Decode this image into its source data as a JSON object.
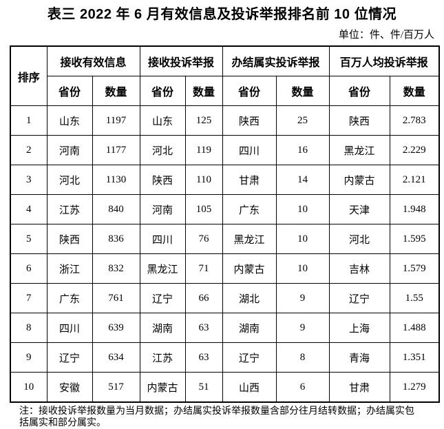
{
  "title": "表三 2022 年 6 月有效信息及投诉举报排名前 10 位情况",
  "unit_label": "单位：件、件/百万人",
  "table": {
    "rank_header": "排序",
    "groups": [
      {
        "label": "接收有效信息",
        "province_header": "省份",
        "count_header": "数量"
      },
      {
        "label": "接收投诉举报",
        "province_header": "省份",
        "count_header": "数量"
      },
      {
        "label": "办结属实投诉举报",
        "province_header": "省份",
        "count_header": "数量"
      },
      {
        "label": "百万人均投诉举报",
        "province_header": "省份",
        "count_header": "数量"
      }
    ],
    "rows": [
      {
        "rank": "1",
        "cells": [
          "山东",
          "1197",
          "山东",
          "125",
          "陕西",
          "25",
          "陕西",
          "2.783"
        ]
      },
      {
        "rank": "2",
        "cells": [
          "河南",
          "1177",
          "河北",
          "119",
          "四川",
          "16",
          "黑龙江",
          "2.229"
        ]
      },
      {
        "rank": "3",
        "cells": [
          "河北",
          "1130",
          "陕西",
          "110",
          "甘肃",
          "14",
          "内蒙古",
          "2.121"
        ]
      },
      {
        "rank": "4",
        "cells": [
          "江苏",
          "840",
          "河南",
          "105",
          "广东",
          "10",
          "天津",
          "1.948"
        ]
      },
      {
        "rank": "5",
        "cells": [
          "陕西",
          "836",
          "四川",
          "76",
          "黑龙江",
          "10",
          "河北",
          "1.595"
        ]
      },
      {
        "rank": "6",
        "cells": [
          "浙江",
          "832",
          "黑龙江",
          "71",
          "内蒙古",
          "10",
          "吉林",
          "1.579"
        ]
      },
      {
        "rank": "7",
        "cells": [
          "广东",
          "761",
          "辽宁",
          "66",
          "湖北",
          "9",
          "辽宁",
          "1.55"
        ]
      },
      {
        "rank": "8",
        "cells": [
          "四川",
          "639",
          "湖南",
          "63",
          "湖南",
          "9",
          "上海",
          "1.488"
        ]
      },
      {
        "rank": "9",
        "cells": [
          "辽宁",
          "634",
          "江苏",
          "63",
          "辽宁",
          "8",
          "青海",
          "1.351"
        ]
      },
      {
        "rank": "10",
        "cells": [
          "安徽",
          "517",
          "内蒙古",
          "51",
          "山西",
          "6",
          "甘肃",
          "1.279"
        ]
      }
    ]
  },
  "note": "注：接收投诉举报数量为当月数据；办结属实投诉举报数量含部分往月结转数据；办结属实包括属实和部分属实。",
  "colors": {
    "text": "#000000",
    "background": "#ffffff",
    "border": "#000000"
  }
}
